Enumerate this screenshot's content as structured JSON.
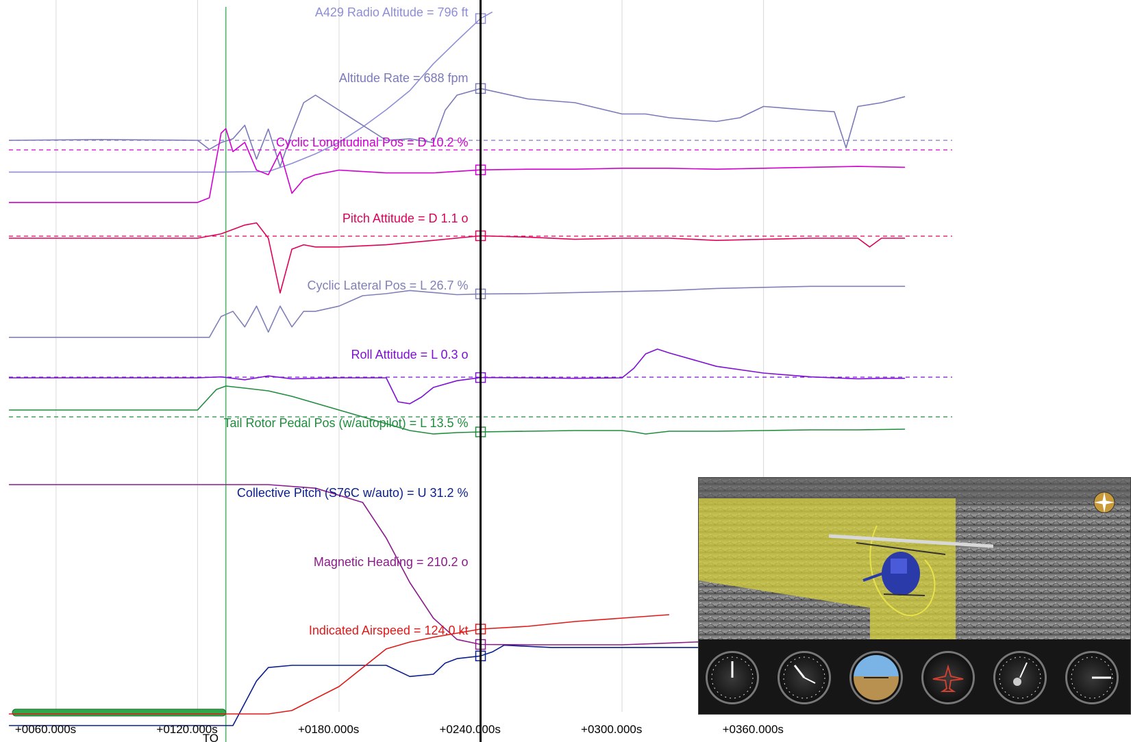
{
  "chart_data": {
    "type": "line",
    "title": "",
    "xlabel": "",
    "xlim": [
      40,
      440
    ],
    "x_ticks": [
      {
        "value": 60,
        "label": "+0060.000s"
      },
      {
        "value": 120,
        "label": "+0120.000s"
      },
      {
        "value": 180,
        "label": "+0180.000s"
      },
      {
        "value": 240,
        "label": "+0240.000s"
      },
      {
        "value": 300,
        "label": "+0300.000s"
      },
      {
        "value": 360,
        "label": "+0360.000s"
      }
    ],
    "cursor_time": 240,
    "event_marker_time": 132,
    "event_marker_label": "TO",
    "grid": true,
    "series": [
      {
        "name": "A429 Radio Altitude",
        "readout": "A429 Radio Altitude = 796 ft",
        "color": "#8e8ed8",
        "x": [
          40,
          100,
          120,
          130,
          140,
          150,
          160,
          170,
          180,
          190,
          200,
          210,
          220,
          230,
          240,
          245
        ],
        "y": [
          -5,
          -5,
          -5,
          -5,
          -4,
          -2,
          40,
          90,
          150,
          230,
          320,
          420,
          560,
          680,
          796,
          830
        ]
      },
      {
        "name": "Altitude Rate",
        "readout": "Altitude Rate = 688 fpm",
        "color": "#7a7aba",
        "x": [
          40,
          80,
          120,
          125,
          130,
          135,
          140,
          145,
          150,
          155,
          160,
          165,
          170,
          180,
          200,
          210,
          220,
          225,
          230,
          240,
          260,
          280,
          300,
          310,
          320,
          340,
          350,
          360,
          380,
          390,
          395,
          400,
          410,
          420
        ],
        "y": [
          0,
          10,
          0,
          -120,
          -30,
          20,
          200,
          -250,
          150,
          -350,
          100,
          500,
          600,
          400,
          0,
          20,
          -30,
          400,
          600,
          688,
          550,
          500,
          350,
          350,
          300,
          250,
          300,
          450,
          400,
          380,
          -100,
          450,
          500,
          580
        ]
      },
      {
        "name": "Cyclic Longitudinal Pos",
        "readout": "Cyclic Longitudinal Pos = D 10.2 %",
        "color": "#d100d1",
        "x": [
          40,
          120,
          125,
          130,
          132,
          135,
          140,
          145,
          150,
          155,
          160,
          165,
          170,
          180,
          200,
          220,
          240,
          260,
          280,
          300,
          320,
          340,
          360,
          380,
          400,
          420
        ],
        "y": [
          -25,
          -25,
          -20,
          50,
          55,
          30,
          40,
          10,
          5,
          30,
          -15,
          0,
          5,
          10,
          7,
          7,
          10.2,
          11,
          11,
          12,
          12,
          11,
          12,
          13,
          14,
          13
        ]
      },
      {
        "name": "Pitch Attitude",
        "readout": "Pitch Attitude = D 1.1 o",
        "color": "#e0005a",
        "x": [
          40,
          120,
          130,
          140,
          145,
          150,
          155,
          160,
          165,
          170,
          180,
          200,
          220,
          240,
          260,
          280,
          300,
          320,
          340,
          360,
          380,
          400,
          405,
          410,
          420
        ],
        "y": [
          0,
          0,
          2,
          6,
          7,
          0,
          -25,
          -5,
          -3,
          -4,
          -4,
          -3,
          -1,
          1.1,
          0.5,
          -0.5,
          0,
          0,
          -1,
          -0.5,
          0,
          0,
          -4,
          0,
          0
        ]
      },
      {
        "name": "Cyclic Lateral Pos",
        "readout": "Cyclic Lateral Pos = L 26.7 %",
        "color": "#8080b8",
        "x": [
          40,
          90,
          125,
          130,
          135,
          140,
          145,
          150,
          155,
          160,
          165,
          170,
          180,
          190,
          200,
          210,
          220,
          230,
          240,
          260,
          280,
          300,
          320,
          340,
          360,
          380,
          400,
          420
        ],
        "y": [
          -15,
          -15,
          -15,
          5,
          10,
          -5,
          15,
          -10,
          15,
          -5,
          10,
          10,
          15,
          25,
          27,
          30,
          28,
          26,
          26.7,
          27,
          28,
          29,
          30,
          32,
          33,
          34,
          34,
          34
        ]
      },
      {
        "name": "Roll Attitude",
        "readout": "Roll Attitude = L 0.3 o",
        "color": "#7d10d6",
        "x": [
          40,
          120,
          130,
          140,
          150,
          160,
          180,
          200,
          205,
          210,
          215,
          220,
          230,
          240,
          260,
          280,
          300,
          305,
          310,
          315,
          320,
          340,
          360,
          380,
          400,
          410,
          420
        ],
        "y": [
          0,
          0,
          1,
          -2,
          2,
          -1,
          0,
          0,
          -25,
          -27,
          -20,
          -10,
          -3,
          0.3,
          0,
          -0.5,
          0,
          10,
          25,
          30,
          26,
          12,
          5,
          1,
          -1,
          -0.5,
          -0.5
        ]
      },
      {
        "name": "Tail Rotor Pedal Pos (w/autopilot)",
        "readout": "Tail Rotor Pedal Pos (w/autopilot) = L 13.5 %",
        "color": "#1e8c3c",
        "x": [
          40,
          120,
          128,
          132,
          140,
          150,
          160,
          170,
          180,
          190,
          200,
          210,
          220,
          230,
          240,
          260,
          280,
          300,
          305,
          310,
          320,
          340,
          360,
          380,
          400,
          420
        ],
        "y": [
          0,
          0,
          30,
          35,
          32,
          28,
          20,
          10,
          0,
          -10,
          -20,
          -30,
          -35,
          -33,
          -32,
          -31,
          -30,
          -30,
          -32,
          -35,
          -31,
          -31,
          -30,
          -29,
          -29,
          -28
        ]
      },
      {
        "name": "Collective Pitch (S76C w/auto)",
        "readout": "Collective Pitch (S76C w/auto) = U 31.2 %",
        "color": "#0a1e8c",
        "x": [
          40,
          120,
          125,
          130,
          135,
          140,
          145,
          150,
          160,
          200,
          210,
          220,
          225,
          230,
          240,
          245,
          250,
          270,
          300,
          320,
          340
        ],
        "y": [
          -100,
          -100,
          -40,
          -20,
          0,
          10,
          20,
          26,
          27,
          27,
          22,
          23,
          28,
          30,
          31.2,
          33,
          36,
          35,
          35,
          35,
          35
        ]
      },
      {
        "name": "Magnetic Heading",
        "readout": "Magnetic Heading = 210.2 o",
        "color": "#8b1a8b",
        "x": [
          40,
          120,
          140,
          150,
          170,
          190,
          200,
          210,
          220,
          230,
          240,
          260,
          280,
          300,
          320,
          340,
          360,
          380,
          400,
          420
        ],
        "y": [
          300,
          300,
          300,
          300,
          298,
          290,
          270,
          245,
          225,
          213,
          210.2,
          210,
          210,
          210,
          211,
          212,
          213,
          215,
          216,
          216
        ]
      },
      {
        "name": "Indicated Airspeed",
        "readout": "Indicated Airspeed = 124.0 kt",
        "color": "#e01818",
        "x": [
          40,
          140,
          150,
          160,
          180,
          200,
          210,
          220,
          230,
          240,
          260,
          280,
          300,
          320
        ],
        "y": [
          0,
          0,
          0,
          5,
          40,
          95,
          105,
          112,
          118,
          124,
          128,
          135,
          140,
          145
        ]
      }
    ]
  },
  "animation_panel": {
    "view": "3D flight animation",
    "compass_icon": "compass-rose-icon",
    "aircraft_icon": "helicopter-icon",
    "gauges": [
      "airspeed-gauge-icon",
      "altimeter-gauge-icon",
      "attitude-indicator-icon",
      "turn-coordinator-icon",
      "heading-gauge-icon",
      "vertical-speed-gauge-icon"
    ],
    "terrain_color": "#8a8a8a",
    "airspace_color": "#d8d23a"
  }
}
